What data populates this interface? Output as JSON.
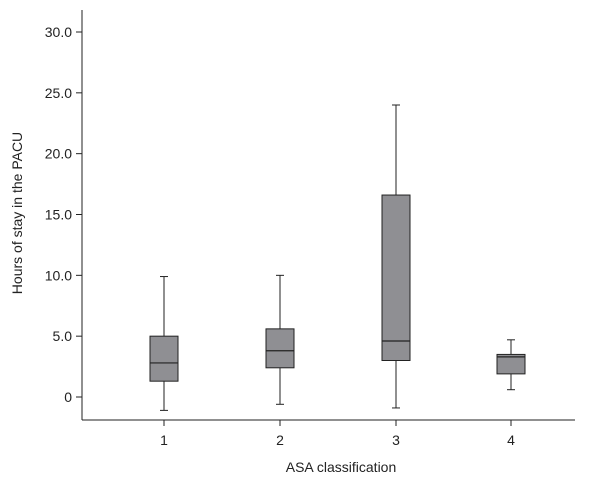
{
  "chart_data": {
    "type": "box",
    "title": "",
    "xlabel": "ASA classification",
    "ylabel": "Hours of stay in the PACU",
    "ylim": [
      -1.2,
      31.5
    ],
    "yticks": [
      0,
      5.0,
      10.0,
      15.0,
      20.0,
      25.0,
      30.0
    ],
    "ytick_labels": [
      "0",
      "5.0",
      "10.0",
      "15.0",
      "20.0",
      "25.0",
      "30.0"
    ],
    "categories": [
      "1",
      "2",
      "3",
      "4"
    ],
    "boxes": [
      {
        "category": "1",
        "whisker_low": -1.1,
        "q1": 1.3,
        "median": 2.8,
        "q3": 5.0,
        "whisker_high": 9.9
      },
      {
        "category": "2",
        "whisker_low": -0.6,
        "q1": 2.4,
        "median": 3.8,
        "q3": 5.6,
        "whisker_high": 10.0
      },
      {
        "category": "3",
        "whisker_low": -0.9,
        "q1": 3.0,
        "median": 4.6,
        "q3": 16.6,
        "whisker_high": 24.0
      },
      {
        "category": "4",
        "whisker_low": 0.6,
        "q1": 1.9,
        "median": 3.3,
        "q3": 3.5,
        "whisker_high": 4.7
      }
    ],
    "box_color": "#8f8f93",
    "line_color": "#222222",
    "grid": false,
    "legend": "none"
  }
}
